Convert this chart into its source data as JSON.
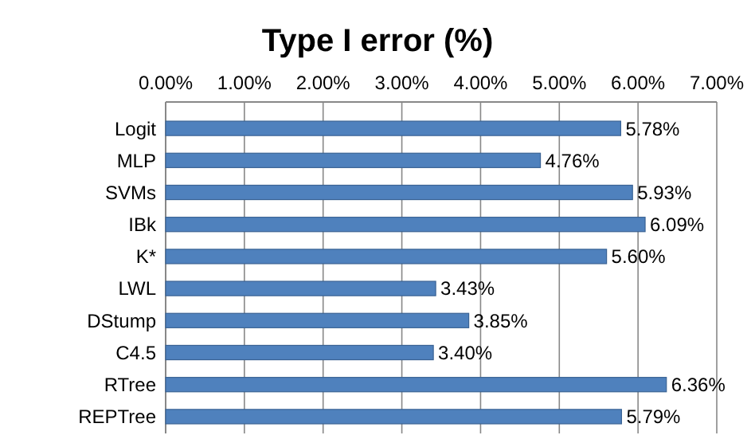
{
  "chart_data": {
    "type": "bar",
    "orientation": "horizontal",
    "title": "Type I error (%)",
    "categories": [
      "Logit",
      "MLP",
      "SVMs",
      "IBk",
      "K*",
      "LWL",
      "DStump",
      "C4.5",
      "RTree",
      "REPTree"
    ],
    "values": [
      5.78,
      4.76,
      5.93,
      6.09,
      5.6,
      3.43,
      3.85,
      3.4,
      6.36,
      5.79
    ],
    "value_labels": [
      "5.78%",
      "4.76%",
      "5.93%",
      "6.09%",
      "5.60%",
      "3.43%",
      "3.85%",
      "3.40%",
      "6.36%",
      "5.79%"
    ],
    "color": "#4f81bd",
    "xlim": [
      0,
      7
    ],
    "xticks": [
      {
        "value": 0,
        "label": "0.00%"
      },
      {
        "value": 1,
        "label": "1.00%"
      },
      {
        "value": 2,
        "label": "2.00%"
      },
      {
        "value": 3,
        "label": "3.00%"
      },
      {
        "value": 4,
        "label": "4.00%"
      },
      {
        "value": 5,
        "label": "5.00%"
      },
      {
        "value": 6,
        "label": "6.00%"
      },
      {
        "value": 7,
        "label": "7.00%"
      }
    ],
    "grid": true
  }
}
